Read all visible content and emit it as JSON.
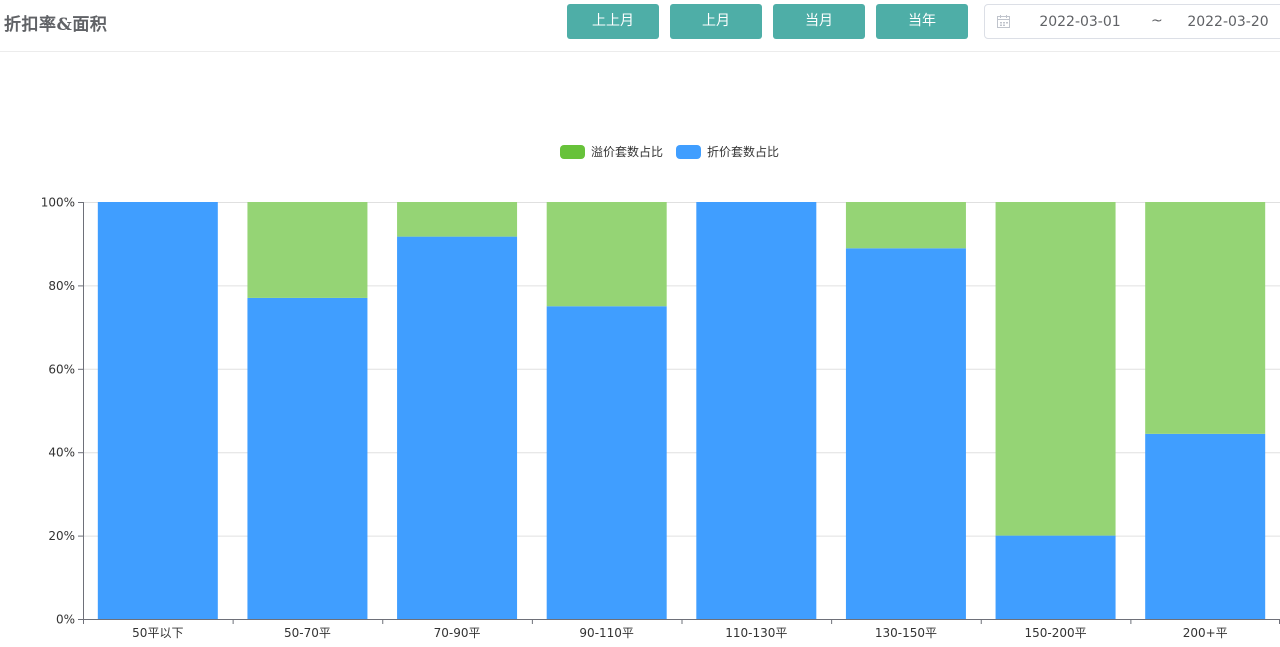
{
  "header": {
    "title": "折扣率&面积",
    "buttons": [
      {
        "label": "上上月"
      },
      {
        "label": "上月"
      },
      {
        "label": "当月"
      },
      {
        "label": "当年"
      }
    ],
    "date_range": {
      "start": "2022-03-01",
      "separator": "~",
      "end": "2022-03-20"
    }
  },
  "colors": {
    "button_bg": "#4eaea7",
    "premium": "#95d475",
    "premium_legend": "#67c23a",
    "discount": "#409eff"
  },
  "chart_data": {
    "type": "bar",
    "stacked": true,
    "categories": [
      "50平以下",
      "50-70平",
      "70-90平",
      "90-110平",
      "110-130平",
      "130-150平",
      "150-200平",
      "200+平"
    ],
    "series": [
      {
        "name": "溢价套数占比",
        "color": "#95d475",
        "legend_color": "#67c23a",
        "values": [
          0,
          23,
          8.3,
          25,
          0,
          11.1,
          80,
          55.6
        ]
      },
      {
        "name": "折价套数占比",
        "color": "#409eff",
        "legend_color": "#409eff",
        "values": [
          100,
          77,
          91.7,
          75,
          100,
          88.9,
          20,
          44.4
        ]
      }
    ],
    "stack_order": [
      "折价套数占比",
      "溢价套数占比"
    ],
    "ylim": [
      0,
      100
    ],
    "yticks": [
      0,
      20,
      40,
      60,
      80,
      100
    ],
    "ytick_labels": [
      "0%",
      "20%",
      "40%",
      "60%",
      "80%",
      "100%"
    ],
    "grid": true,
    "legend_position": "top-center"
  }
}
